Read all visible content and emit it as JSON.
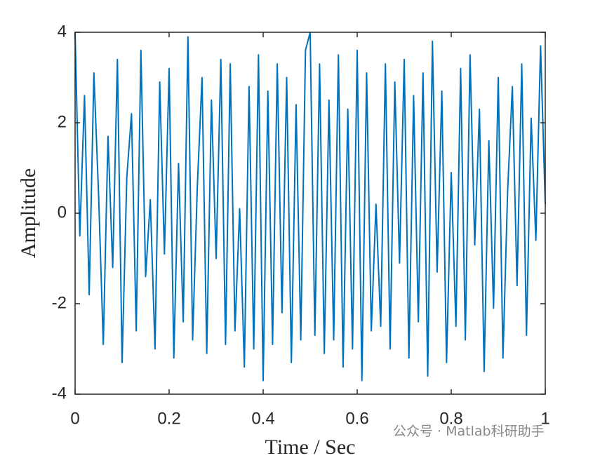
{
  "chart_data": {
    "type": "line",
    "xlabel": "Time / Sec",
    "ylabel": "Amplitude",
    "x": [
      0,
      0.01,
      0.02,
      0.03,
      0.04,
      0.05,
      0.06,
      0.07,
      0.08,
      0.09,
      0.1,
      0.11,
      0.12,
      0.13,
      0.14,
      0.15,
      0.16,
      0.17,
      0.18,
      0.19,
      0.2,
      0.21,
      0.22,
      0.23,
      0.24,
      0.25,
      0.26,
      0.27,
      0.28,
      0.29,
      0.3,
      0.31,
      0.32,
      0.33,
      0.34,
      0.35,
      0.36,
      0.37,
      0.38,
      0.39,
      0.4,
      0.41,
      0.42,
      0.43,
      0.44,
      0.45,
      0.46,
      0.47,
      0.48,
      0.49,
      0.5,
      0.51,
      0.52,
      0.53,
      0.54,
      0.55,
      0.56,
      0.57,
      0.58,
      0.59,
      0.6,
      0.61,
      0.62,
      0.63,
      0.64,
      0.65,
      0.66,
      0.67,
      0.68,
      0.69,
      0.7,
      0.71,
      0.72,
      0.73,
      0.74,
      0.75,
      0.76,
      0.77,
      0.78,
      0.79,
      0.8,
      0.81,
      0.82,
      0.83,
      0.84,
      0.85,
      0.86,
      0.87,
      0.88,
      0.89,
      0.9,
      0.91,
      0.92,
      0.93,
      0.94,
      0.95,
      0.96,
      0.97,
      0.98,
      0.99,
      1
    ],
    "series": [
      {
        "color": "#0072bd",
        "values": [
          4,
          -0.5,
          2.6,
          -1.8,
          3.1,
          0.4,
          -2.9,
          1.7,
          -1.2,
          3.4,
          -3.3,
          0.8,
          2.2,
          -2.6,
          3.6,
          -1.4,
          0.3,
          -3.0,
          2.9,
          -0.9,
          3.2,
          -3.2,
          1.1,
          -2.4,
          3.9,
          -2.8,
          0.6,
          3.0,
          -3.1,
          2.5,
          -1.0,
          3.4,
          -2.9,
          3.3,
          -2.6,
          0.1,
          -3.4,
          2.8,
          -3.0,
          3.5,
          -3.7,
          2.7,
          -2.9,
          3.3,
          -2.2,
          3.0,
          -3.3,
          2.4,
          -2.8,
          3.6,
          4,
          -2.7,
          3.3,
          -3.1,
          2.5,
          -2.8,
          3.5,
          -3.4,
          2.3,
          -3.0,
          3.6,
          -3.7,
          3.1,
          -2.6,
          0.2,
          -2.5,
          3.3,
          -3.0,
          2.9,
          -1.1,
          3.4,
          -3.2,
          2.6,
          -2.4,
          3.1,
          -3.6,
          3.8,
          -1.3,
          2.7,
          -3.3,
          0.9,
          -2.5,
          3.2,
          -2.8,
          3.5,
          -0.7,
          2.3,
          -3.5,
          1.6,
          -2.1,
          3.0,
          -3.2,
          0.5,
          2.8,
          -1.6,
          3.3,
          -2.7,
          2.1,
          -0.6,
          3.7,
          0.2
        ]
      }
    ],
    "xlim": [
      0,
      1
    ],
    "xticks": [
      0,
      0.2,
      0.4,
      0.6,
      0.8,
      1
    ],
    "ylim": [
      -4,
      4
    ],
    "yticks": [
      -4,
      -2,
      0,
      2,
      4
    ],
    "grid": false,
    "watermark": "公众号 · Matlab科研助手"
  }
}
